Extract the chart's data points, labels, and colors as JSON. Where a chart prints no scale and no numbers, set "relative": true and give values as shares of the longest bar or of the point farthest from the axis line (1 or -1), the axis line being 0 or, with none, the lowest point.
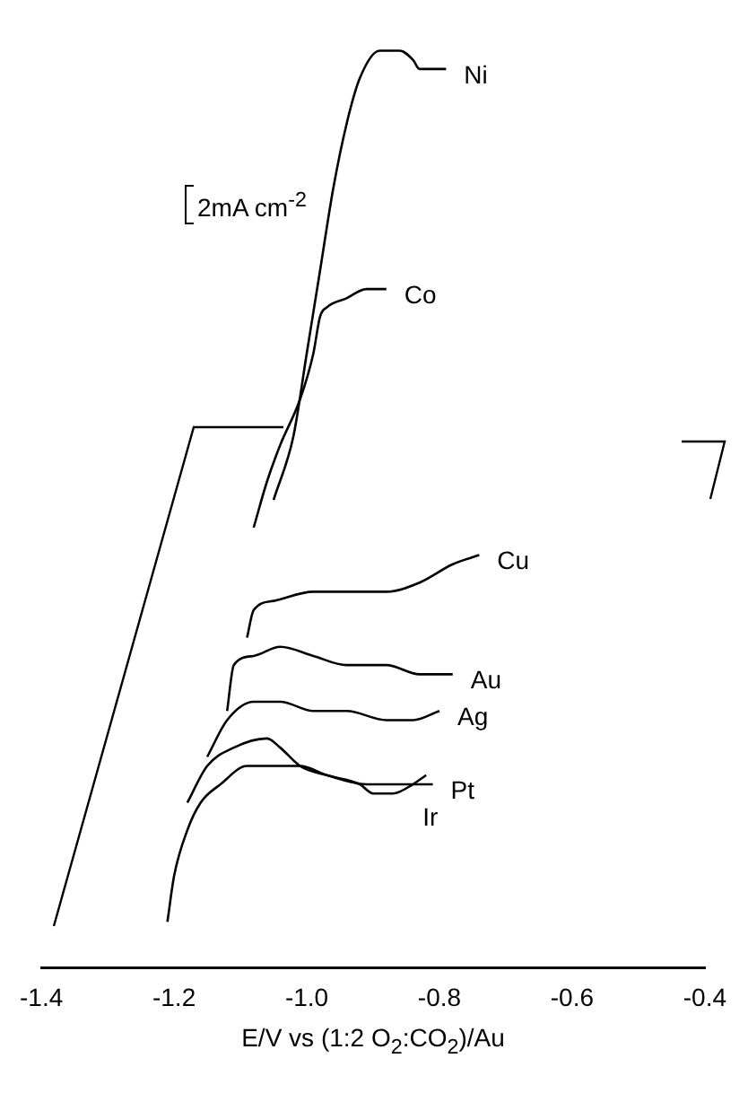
{
  "chart_data": {
    "type": "line",
    "relative": true,
    "xlabel": "E/V vs (1:2 O$_{2}$:CO$_{2}$)/Au",
    "annotations": [
      "2mA cm$^{-2}$"
    ],
    "xlim": [
      -1.4,
      -0.4
    ],
    "xticks": [
      -1.4,
      -1.2,
      {
        "value": -1,
        "label": "-1.0"
      },
      -0.8,
      -0.6,
      -0.4
    ],
    "tick_labels": "x",
    "grid": false,
    "legend": false,
    "marker": "none",
    "line_style": "solid",
    "series": [
      {
        "name": "Ni",
        "color": "#000000",
        "x": [
          -1.05,
          -1.02,
          -1.0,
          -0.98,
          -0.96,
          -0.94,
          -0.92,
          -0.89,
          -0.86,
          -0.84,
          -0.83,
          -0.79
        ],
        "values": [
          0.51,
          0.58,
          0.67,
          0.76,
          0.85,
          0.92,
          0.97,
          1.0,
          1.0,
          0.99,
          0.98,
          0.98
        ]
      },
      {
        "name": "Co",
        "color": "#000000",
        "x": [
          -1.08,
          -1.06,
          -1.04,
          -1.01,
          -0.99,
          -0.98,
          -0.97,
          -0.94,
          -0.91,
          -0.88
        ],
        "values": [
          0.48,
          0.53,
          0.57,
          0.62,
          0.67,
          0.71,
          0.72,
          0.73,
          0.74,
          0.74
        ]
      },
      {
        "name": "Cu",
        "color": "#000000",
        "x": [
          -1.09,
          -1.08,
          -1.05,
          -0.99,
          -0.94,
          -0.88,
          -0.83,
          -0.78,
          -0.74
        ],
        "values": [
          0.36,
          0.39,
          0.4,
          0.41,
          0.41,
          0.41,
          0.42,
          0.44,
          0.45
        ]
      },
      {
        "name": "Au",
        "color": "#000000",
        "x": [
          -1.12,
          -1.11,
          -1.08,
          -1.04,
          -0.99,
          -0.94,
          -0.88,
          -0.83,
          -0.78
        ],
        "values": [
          0.28,
          0.33,
          0.34,
          0.35,
          0.34,
          0.33,
          0.33,
          0.32,
          0.32
        ]
      },
      {
        "name": "Ag",
        "color": "#000000",
        "x": [
          -1.15,
          -1.12,
          -1.08,
          -1.04,
          -0.99,
          -0.94,
          -0.88,
          -0.84,
          -0.8
        ],
        "values": [
          0.23,
          0.27,
          0.29,
          0.29,
          0.28,
          0.28,
          0.27,
          0.27,
          0.28
        ]
      },
      {
        "name": "Pt",
        "color": "#000000",
        "x": [
          -1.18,
          -1.15,
          -1.11,
          -1.06,
          -1.04,
          -1.01,
          -0.97,
          -0.91,
          -0.85,
          -0.81
        ],
        "values": [
          0.18,
          0.22,
          0.24,
          0.25,
          0.24,
          0.22,
          0.21,
          0.2,
          0.2,
          0.2
        ]
      },
      {
        "name": "Ir",
        "color": "#000000",
        "x": [
          -1.21,
          -1.2,
          -1.18,
          -1.16,
          -1.13,
          -1.09,
          -1.05,
          -1.01,
          -0.97,
          -0.92,
          -0.9,
          -0.87,
          -0.84,
          -0.82
        ],
        "values": [
          0.05,
          0.1,
          0.15,
          0.18,
          0.2,
          0.22,
          0.22,
          0.22,
          0.21,
          0.2,
          0.19,
          0.19,
          0.2,
          0.21
        ]
      }
    ]
  }
}
